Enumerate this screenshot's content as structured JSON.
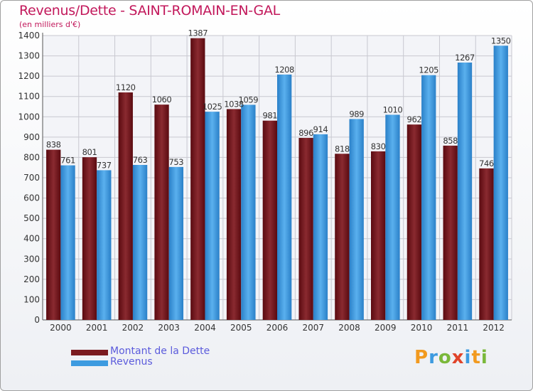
{
  "chart_data": {
    "type": "bar",
    "title": "Revenus/Dette - SAINT-ROMAIN-EN-GAL",
    "subtitle": "(en milliers d'€)",
    "categories": [
      "2000",
      "2001",
      "2002",
      "2003",
      "2004",
      "2005",
      "2006",
      "2007",
      "2008",
      "2009",
      "2010",
      "2011",
      "2012"
    ],
    "series": [
      {
        "name": "Montant de la Dette",
        "color": "#7a1a1f",
        "values": [
          838,
          801,
          1120,
          1060,
          1387,
          1038,
          981,
          896,
          818,
          830,
          962,
          858,
          746
        ]
      },
      {
        "name": "Revenus",
        "color": "#3d9be0",
        "values": [
          761,
          737,
          763,
          753,
          1025,
          1059,
          1208,
          914,
          989,
          1010,
          1205,
          1267,
          1350
        ]
      }
    ],
    "ylim": [
      0,
      1400
    ],
    "yticks": [
      0,
      100,
      200,
      300,
      400,
      500,
      600,
      700,
      800,
      900,
      1000,
      1100,
      1200,
      1300,
      1400
    ],
    "grid": true,
    "legend_position": "bottom-left"
  },
  "logo": {
    "text": "Proxiti",
    "colors": [
      "#f29a1f",
      "#3d9be0",
      "#7ab83a",
      "#e0442a",
      "#3d9be0",
      "#f29a1f",
      "#7ab83a"
    ]
  }
}
